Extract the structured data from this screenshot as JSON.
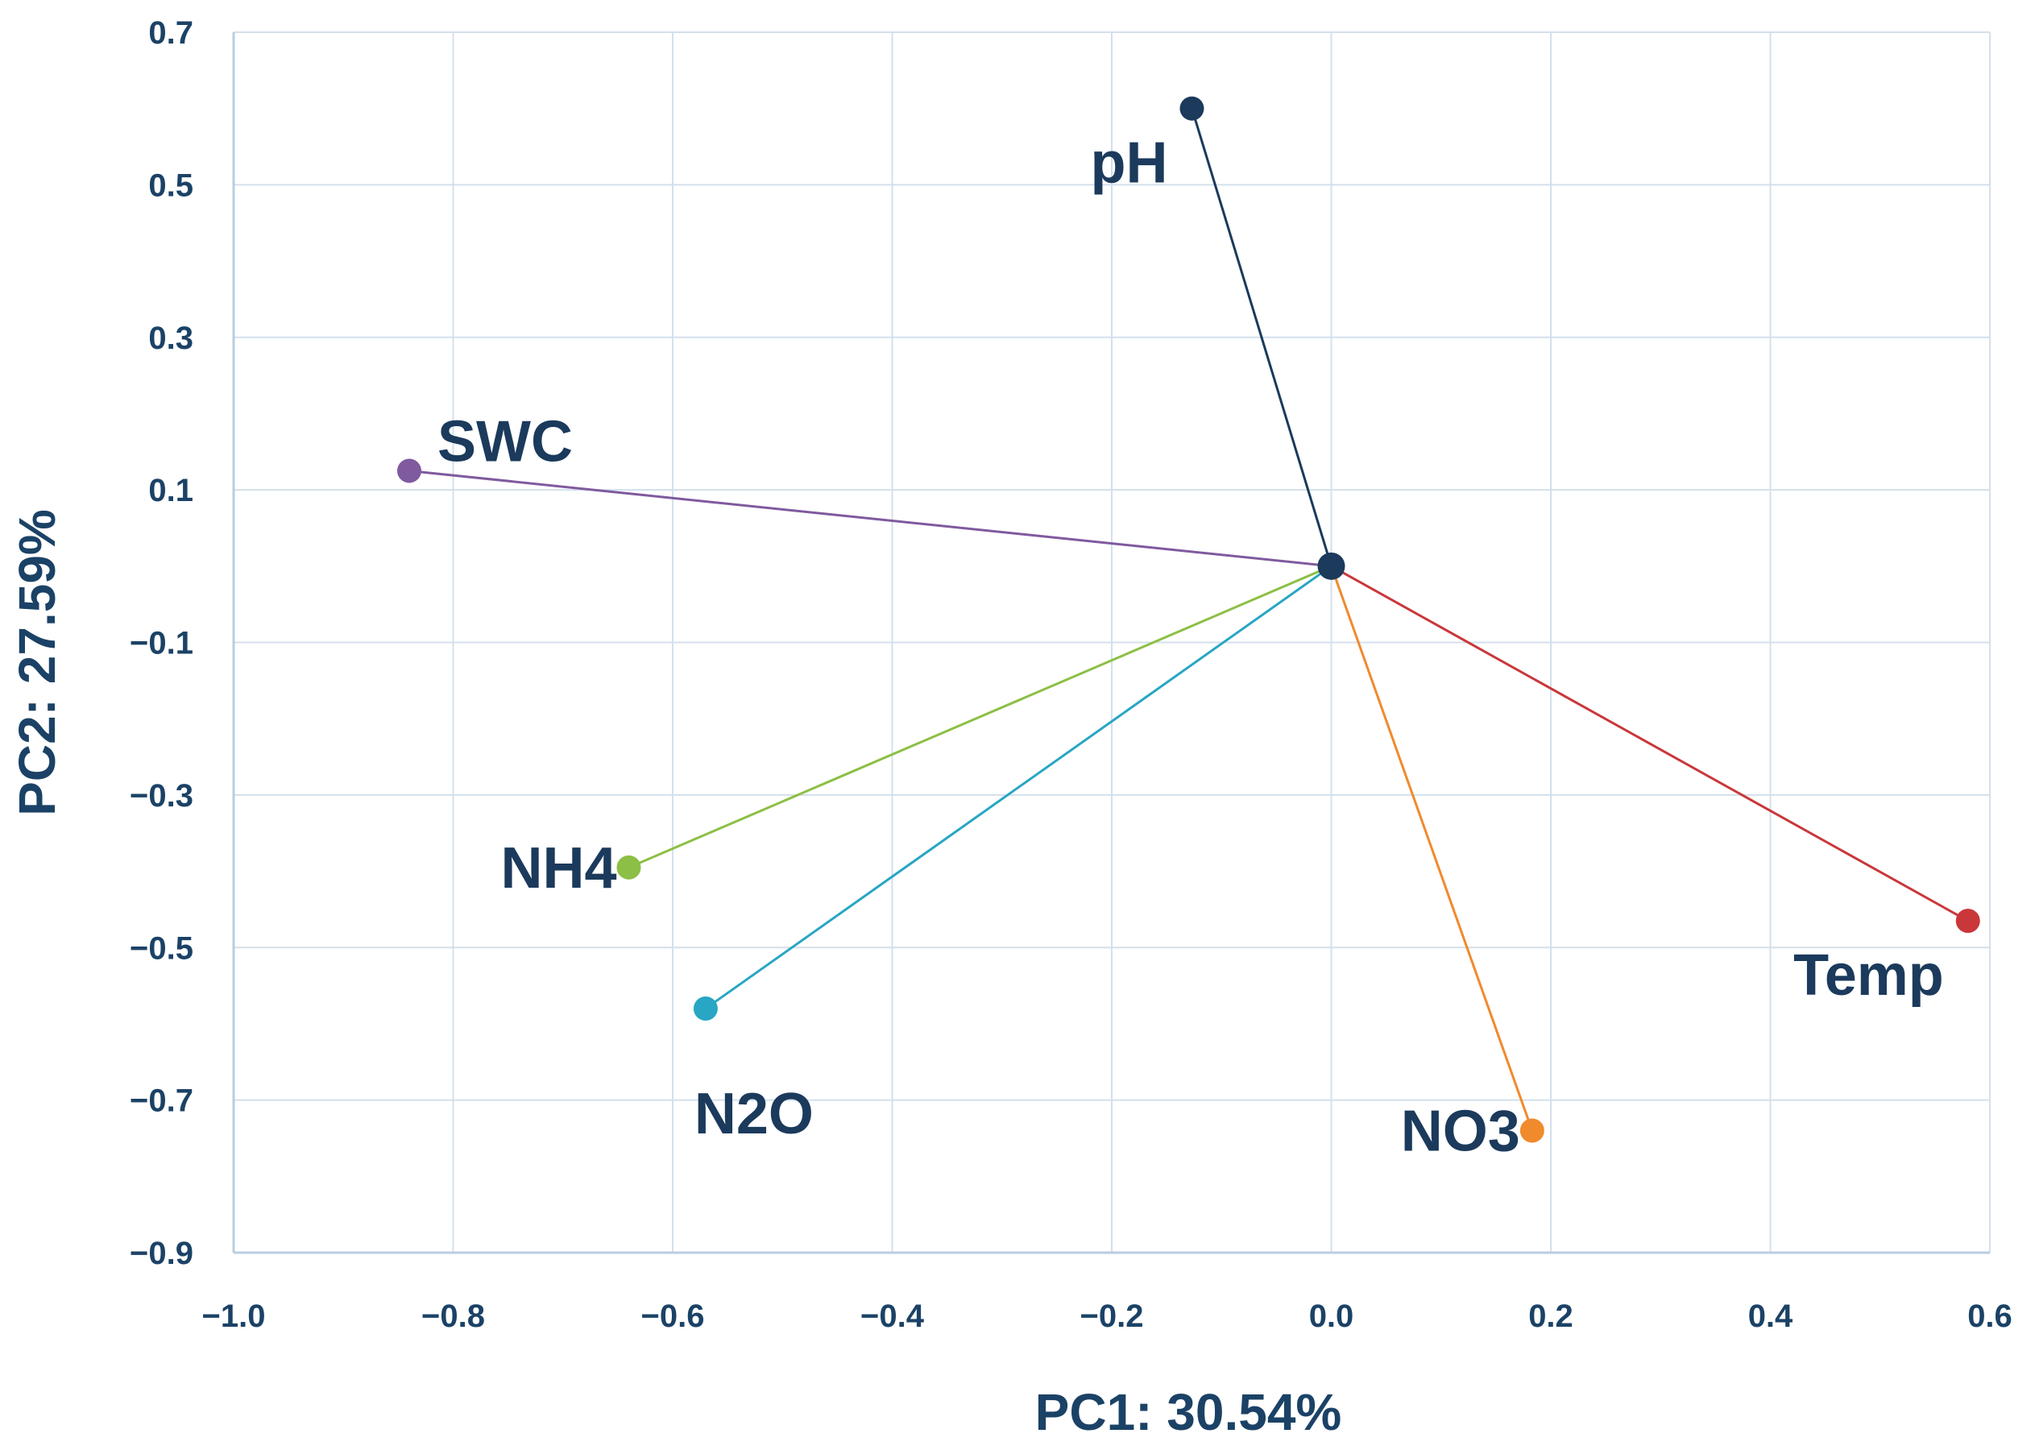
{
  "chart_data": {
    "type": "scatter",
    "subtype": "pca-loading-biplot",
    "title": "",
    "xlabel": "PC1: 30.54%",
    "ylabel": "PC2: 27.59%",
    "xlim": [
      -1.0,
      0.6
    ],
    "ylim": [
      -0.9,
      0.7
    ],
    "x_ticks": [
      -1.0,
      -0.8,
      -0.6,
      -0.4,
      -0.2,
      0.0,
      0.2,
      0.4,
      0.6
    ],
    "x_tick_labels": [
      "−1.0",
      "−0.8",
      "−0.6",
      "−0.4",
      "−0.2",
      "0.0",
      "0.2",
      "0.4",
      "0.6"
    ],
    "y_ticks": [
      0.7,
      0.5,
      0.3,
      0.1,
      -0.1,
      -0.3,
      -0.5,
      -0.7,
      -0.9
    ],
    "y_tick_labels": [
      "0.7",
      "0.5",
      "0.3",
      "0.1",
      "−0.1",
      "−0.3",
      "−0.5",
      "−0.7",
      "−0.9"
    ],
    "grid": true,
    "origin": {
      "x": 0.0,
      "y": 0.0,
      "color": "#1b3a5c"
    },
    "series": [
      {
        "name": "pH",
        "x": -0.127,
        "y": 0.6,
        "color": "#1b3a5c",
        "label_anchor": "below-left"
      },
      {
        "name": "SWC",
        "x": -0.84,
        "y": 0.125,
        "color": "#7f5a9e",
        "label_anchor": "above-right"
      },
      {
        "name": "NH4",
        "x": -0.64,
        "y": -0.395,
        "color": "#8cbf45",
        "label_anchor": "left"
      },
      {
        "name": "N2O",
        "x": -0.57,
        "y": -0.58,
        "color": "#28a6c4",
        "label_anchor": "below"
      },
      {
        "name": "NO3",
        "x": 0.183,
        "y": -0.74,
        "color": "#f08a2c",
        "label_anchor": "left"
      },
      {
        "name": "Temp",
        "x": 0.58,
        "y": -0.465,
        "color": "#c9373a",
        "label_anchor": "below-left"
      }
    ]
  }
}
